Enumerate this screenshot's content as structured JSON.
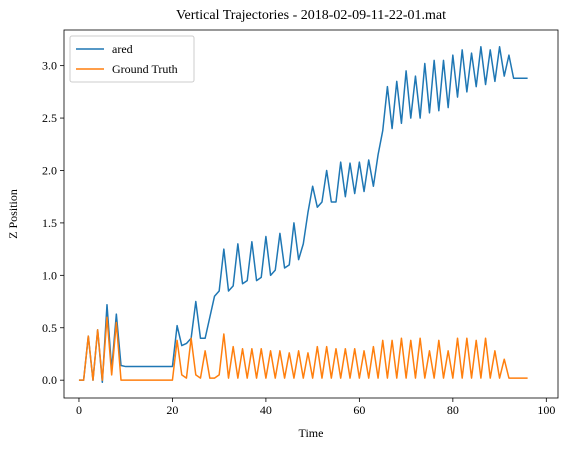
{
  "chart_data": {
    "type": "line",
    "title": "Vertical Trajectories - 2018-02-09-11-22-01.mat",
    "xlabel": "Time",
    "ylabel": "Z Position",
    "x": [
      0,
      1,
      2,
      3,
      4,
      5,
      6,
      7,
      8,
      9,
      10,
      11,
      12,
      13,
      14,
      15,
      16,
      17,
      18,
      19,
      20,
      21,
      22,
      23,
      24,
      25,
      26,
      27,
      28,
      29,
      30,
      31,
      32,
      33,
      34,
      35,
      36,
      37,
      38,
      39,
      40,
      41,
      42,
      43,
      44,
      45,
      46,
      47,
      48,
      49,
      50,
      51,
      52,
      53,
      54,
      55,
      56,
      57,
      58,
      59,
      60,
      61,
      62,
      63,
      64,
      65,
      66,
      67,
      68,
      69,
      70,
      71,
      72,
      73,
      74,
      75,
      76,
      77,
      78,
      79,
      80,
      81,
      82,
      83,
      84,
      85,
      86,
      87,
      88,
      89,
      90,
      91,
      92,
      93,
      94,
      95,
      96
    ],
    "series": [
      {
        "name": "ared",
        "color": "#1f77b4",
        "values": [
          0,
          0,
          0.42,
          0,
          0.48,
          -0.02,
          0.72,
          0.1,
          0.63,
          0.14,
          0.13,
          0.13,
          0.13,
          0.13,
          0.13,
          0.13,
          0.13,
          0.13,
          0.13,
          0.13,
          0.13,
          0.52,
          0.33,
          0.35,
          0.4,
          0.75,
          0.4,
          0.4,
          0.6,
          0.8,
          0.85,
          1.25,
          0.85,
          0.9,
          1.3,
          0.92,
          0.95,
          1.32,
          0.95,
          0.98,
          1.37,
          1.0,
          1.05,
          1.4,
          1.07,
          1.1,
          1.5,
          1.15,
          1.3,
          1.6,
          1.85,
          1.65,
          1.7,
          2.0,
          1.7,
          1.7,
          2.08,
          1.75,
          2.07,
          1.78,
          2.08,
          1.8,
          2.1,
          1.85,
          2.15,
          2.38,
          2.8,
          2.4,
          2.85,
          2.45,
          2.95,
          2.5,
          2.9,
          2.5,
          3.02,
          2.55,
          3.05,
          2.57,
          3.05,
          2.6,
          3.1,
          2.7,
          3.15,
          2.75,
          3.12,
          2.8,
          3.18,
          2.82,
          3.15,
          2.85,
          3.18,
          2.9,
          3.1,
          2.88,
          2.88,
          2.88,
          2.88
        ]
      },
      {
        "name": "Ground Truth",
        "color": "#ff7f0e",
        "values": [
          0,
          0,
          0.42,
          0,
          0.48,
          0,
          0.6,
          0.05,
          0.55,
          0,
          0,
          0,
          0,
          0,
          0,
          0,
          0,
          0,
          0,
          0,
          0,
          0.38,
          0.05,
          0.02,
          0.4,
          0.05,
          0.02,
          0.28,
          0.02,
          0.02,
          0.05,
          0.44,
          0.02,
          0.32,
          0.02,
          0.3,
          0.02,
          0.3,
          0.02,
          0.3,
          0.02,
          0.28,
          0.02,
          0.28,
          0.02,
          0.26,
          0.02,
          0.28,
          0.02,
          0.26,
          0.02,
          0.32,
          0.02,
          0.32,
          0.02,
          0.3,
          0.02,
          0.3,
          0.02,
          0.3,
          0.02,
          0.28,
          0.02,
          0.32,
          0.02,
          0.38,
          0.02,
          0.38,
          0.02,
          0.4,
          0.02,
          0.38,
          0.02,
          0.4,
          0.02,
          0.28,
          0.02,
          0.38,
          0.02,
          0.28,
          0.02,
          0.4,
          0.02,
          0.4,
          0.02,
          0.38,
          0.02,
          0.4,
          0.02,
          0.28,
          0.02,
          0.2,
          0.02,
          0.02,
          0.02,
          0.02,
          0.02
        ]
      }
    ],
    "xlim": [
      -3.2,
      102.5
    ],
    "ylim": [
      -0.17,
      3.34
    ],
    "xticks": [
      0,
      20,
      40,
      60,
      80,
      100
    ],
    "yticks": [
      {
        "value": 0,
        "label": "0.0"
      },
      0.5,
      {
        "value": 1,
        "label": "1.0"
      },
      1.5,
      {
        "value": 2,
        "label": "2.0"
      },
      2.5,
      {
        "value": 3,
        "label": "3.0"
      }
    ],
    "legend": "upper left",
    "grid": false
  }
}
